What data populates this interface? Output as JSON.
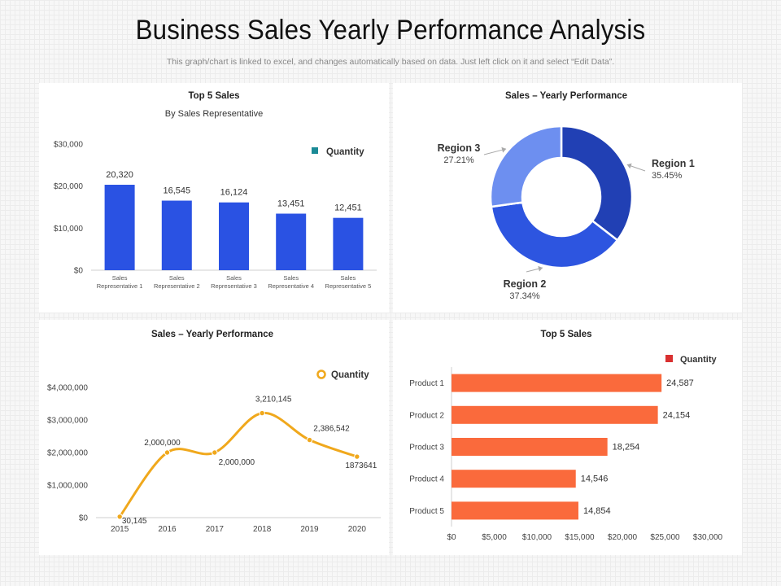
{
  "page": {
    "title": "Business Sales Yearly Performance Analysis",
    "subtitle": "This graph/chart is linked to excel, and changes automatically based on data. Just left click on it and select “Edit Data”."
  },
  "colors": {
    "bar_blue": "#2a52e3",
    "legend_teal": "#1a8a96",
    "donut_region1": "#2140b4",
    "donut_region2": "#2d55e0",
    "donut_region3": "#6d8ff0",
    "line_orange": "#f0a81c",
    "hbar_orange": "#fa6a3c",
    "legend_red": "#d93030"
  },
  "chart_data": [
    {
      "type": "bar",
      "title": "Top 5 Sales",
      "subtitle": "By Sales Representative",
      "legend": "Quantity",
      "legend_position": "top-right",
      "categories": [
        [
          "Sales",
          "Representative 1"
        ],
        [
          "Sales",
          "Representative 2"
        ],
        [
          "Sales",
          "Representative 3"
        ],
        [
          "Sales",
          "Representative 4"
        ],
        [
          "Sales",
          "Representative 5"
        ]
      ],
      "values": [
        20320,
        16545,
        16124,
        13451,
        12451
      ],
      "value_labels": [
        "20,320",
        "16,545",
        "16,124",
        "13,451",
        "12,451"
      ],
      "yticks": [
        0,
        10000,
        20000,
        30000
      ],
      "ytick_labels": [
        "$0",
        "$10,000",
        "$20,000",
        "$30,000"
      ],
      "ylim": [
        0,
        30000
      ]
    },
    {
      "type": "pie",
      "title": "Sales – Yearly Performance",
      "slices": [
        {
          "label": "Region 1",
          "value": 35.45,
          "pct": "35.45%"
        },
        {
          "label": "Region 2",
          "value": 37.34,
          "pct": "37.34%"
        },
        {
          "label": "Region 3",
          "value": 27.21,
          "pct": "27.21%"
        }
      ]
    },
    {
      "type": "line",
      "title": "Sales – Yearly Performance",
      "legend": "Quantity",
      "legend_position": "top-right",
      "x": [
        "2015",
        "2016",
        "2017",
        "2018",
        "2019",
        "2020"
      ],
      "values": [
        30145,
        2000000,
        2000000,
        3210145,
        2386542,
        1873641
      ],
      "value_labels": [
        "30,145",
        "2,000,000",
        "2,000,000",
        "3,210,145",
        "2,386,542",
        "1873641"
      ],
      "yticks": [
        0,
        1000000,
        2000000,
        3000000,
        4000000
      ],
      "ytick_labels": [
        "$0",
        "$1,000,000",
        "$2,000,000",
        "$3,000,000",
        "$4,000,000"
      ],
      "ylim": [
        0,
        4000000
      ]
    },
    {
      "type": "bar",
      "orientation": "horizontal",
      "title": "Top 5 Sales",
      "legend": "Quantity",
      "legend_position": "top-right",
      "categories": [
        "Product 1",
        "Product 2",
        "Product 3",
        "Product 4",
        "Product 5"
      ],
      "values": [
        24587,
        24154,
        18254,
        14546,
        14854
      ],
      "value_labels": [
        "24,587",
        "24,154",
        "18,254",
        "14,546",
        "14,854"
      ],
      "xticks": [
        0,
        5000,
        10000,
        15000,
        20000,
        25000,
        30000
      ],
      "xtick_labels": [
        "$0",
        "$5,000",
        "$10,000",
        "$15,000",
        "$20,000",
        "$25,000",
        "$30,000"
      ],
      "xlim": [
        0,
        30000
      ]
    }
  ]
}
